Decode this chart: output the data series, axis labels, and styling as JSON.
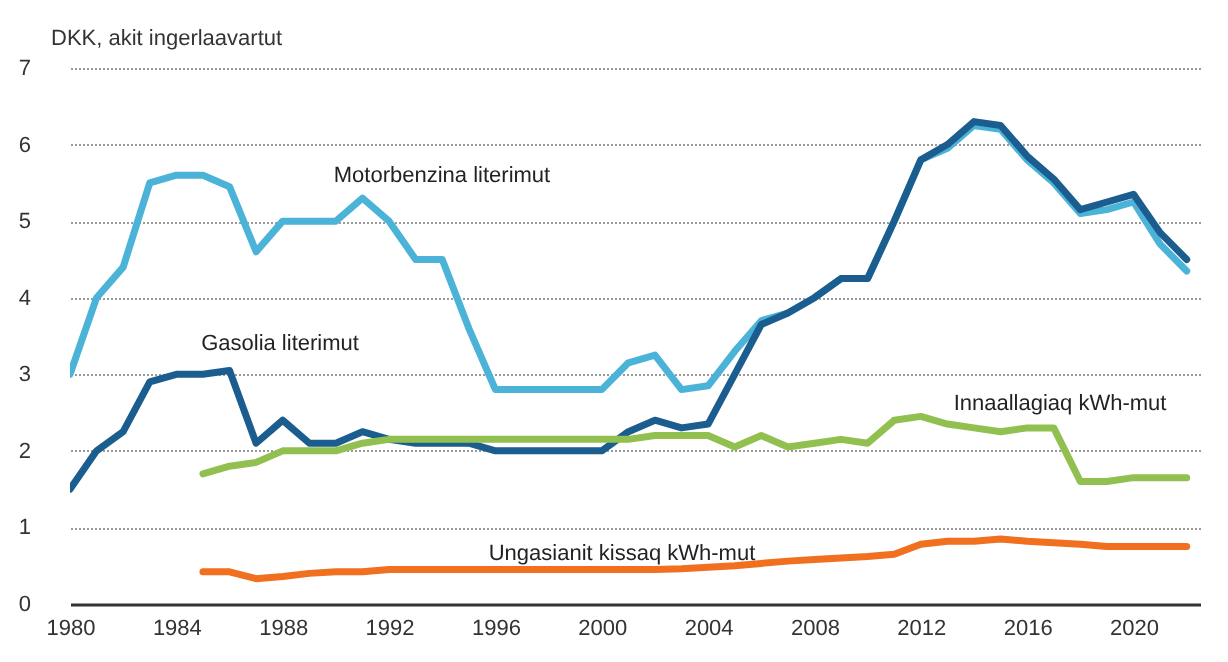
{
  "chart_data": {
    "type": "line",
    "ylabel": "DKK, akit ingerlaavartut",
    "x": [
      1980,
      1981,
      1982,
      1983,
      1984,
      1985,
      1986,
      1987,
      1988,
      1989,
      1990,
      1991,
      1992,
      1993,
      1994,
      1995,
      1996,
      1997,
      1998,
      1999,
      2000,
      2001,
      2002,
      2003,
      2004,
      2005,
      2006,
      2007,
      2008,
      2009,
      2010,
      2011,
      2012,
      2013,
      2014,
      2015,
      2016,
      2017,
      2018,
      2019,
      2020,
      2021,
      2022
    ],
    "series": [
      {
        "name": "Motorbenzina literimut",
        "color": "#4bb3d8",
        "values": [
          3.0,
          4.0,
          4.4,
          5.5,
          5.6,
          5.6,
          5.45,
          4.6,
          5.0,
          5.0,
          5.0,
          5.3,
          5.0,
          4.5,
          4.5,
          3.6,
          2.8,
          2.8,
          2.8,
          2.8,
          2.8,
          3.15,
          3.25,
          2.8,
          2.85,
          3.3,
          3.7,
          3.8,
          4.0,
          4.25,
          4.25,
          5.0,
          5.8,
          5.95,
          6.25,
          6.2,
          5.8,
          5.5,
          5.1,
          5.15,
          5.25,
          4.7,
          4.35
        ]
      },
      {
        "name": "Gasolia literimut",
        "color": "#1a5d8e",
        "values": [
          1.5,
          2.0,
          2.25,
          2.9,
          3.0,
          3.0,
          3.05,
          2.1,
          2.4,
          2.1,
          2.1,
          2.25,
          2.15,
          2.1,
          2.1,
          2.1,
          2.0,
          2.0,
          2.0,
          2.0,
          2.0,
          2.25,
          2.4,
          2.3,
          2.35,
          3.0,
          3.65,
          3.8,
          4.0,
          4.25,
          4.25,
          5.0,
          5.8,
          6.0,
          6.3,
          6.25,
          5.85,
          5.55,
          5.15,
          5.25,
          5.35,
          4.85,
          4.5
        ]
      },
      {
        "name": "Innaallagiaq kWh-mut",
        "color": "#92c050",
        "values": [
          null,
          null,
          null,
          null,
          null,
          1.7,
          1.8,
          1.85,
          2.0,
          2.0,
          2.0,
          2.1,
          2.15,
          2.15,
          2.15,
          2.15,
          2.15,
          2.15,
          2.15,
          2.15,
          2.15,
          2.15,
          2.2,
          2.2,
          2.2,
          2.05,
          2.2,
          2.05,
          2.1,
          2.15,
          2.1,
          2.4,
          2.45,
          2.35,
          2.3,
          2.25,
          2.3,
          2.3,
          1.6,
          1.6,
          1.65,
          1.65,
          1.65
        ]
      },
      {
        "name": "Ungasianit kissaq kWh-mut",
        "color": "#f07020",
        "values": [
          null,
          null,
          null,
          null,
          null,
          0.42,
          0.42,
          0.33,
          0.36,
          0.4,
          0.42,
          0.42,
          0.45,
          0.45,
          0.45,
          0.45,
          0.45,
          0.45,
          0.45,
          0.45,
          0.45,
          0.45,
          0.45,
          0.46,
          0.48,
          0.5,
          0.53,
          0.56,
          0.58,
          0.6,
          0.62,
          0.65,
          0.78,
          0.82,
          0.82,
          0.85,
          0.82,
          0.8,
          0.78,
          0.75,
          0.75,
          0.75,
          0.75
        ]
      }
    ],
    "xlim": [
      1980,
      2022.5
    ],
    "xticks": [
      1980,
      1984,
      1988,
      1992,
      1996,
      2000,
      2004,
      2008,
      2012,
      2016,
      2020
    ],
    "ylim": [
      0,
      7
    ],
    "yticks": [
      0,
      1,
      2,
      3,
      4,
      5,
      6,
      7
    ],
    "grid": "y",
    "legend": false,
    "marker": "none",
    "line_style": "solid"
  }
}
